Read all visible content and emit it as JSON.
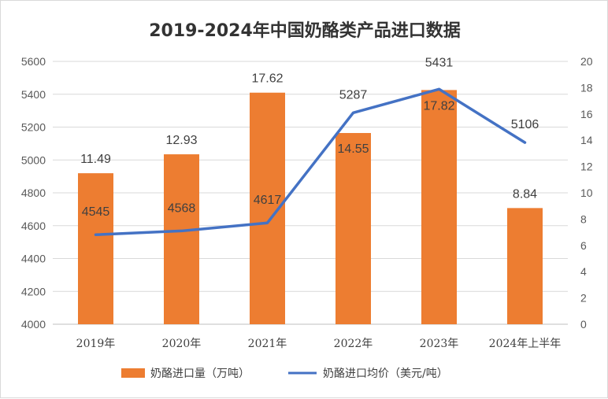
{
  "chart_data": {
    "type": "bar",
    "title": "2019-2024年中国奶酪类产品进口数据",
    "categories": [
      "2019年",
      "2020年",
      "2021年",
      "2022年",
      "2023年",
      "2024年上半年"
    ],
    "series": [
      {
        "name": "奶酪进口量（万吨）",
        "type": "bar",
        "axis": "right",
        "values": [
          11.49,
          12.93,
          17.62,
          14.55,
          17.82,
          8.84
        ],
        "labels": [
          "11.49",
          "12.93",
          "17.62",
          "14.55",
          "17.82",
          "8.84"
        ],
        "color": "#ED7D31"
      },
      {
        "name": "奶酪进口均价（美元/吨）",
        "type": "line",
        "axis": "left",
        "values": [
          4545,
          4568,
          4617,
          5287,
          5431,
          5106
        ],
        "labels": [
          "4545",
          "4568",
          "4617",
          "5287",
          "5431",
          "5106"
        ],
        "color": "#4472C4"
      }
    ],
    "y_left": {
      "min": 4000,
      "max": 5600,
      "step": 200,
      "ticks": [
        "4000",
        "4200",
        "4400",
        "4600",
        "4800",
        "5000",
        "5200",
        "5400",
        "5600"
      ]
    },
    "y_right": {
      "min": 0,
      "max": 20,
      "step": 2,
      "ticks": [
        "0",
        "2",
        "4",
        "6",
        "8",
        "10",
        "12",
        "14",
        "16",
        "18",
        "20"
      ]
    },
    "grid": true,
    "legend": "bottom"
  }
}
